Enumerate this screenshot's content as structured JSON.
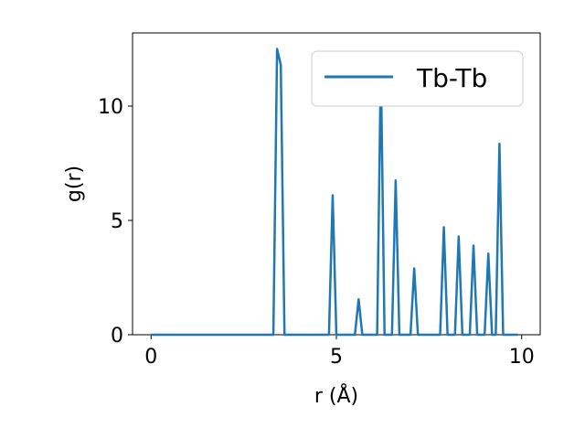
{
  "chart_data": {
    "type": "line",
    "title": "",
    "xlabel": "r (Å)",
    "ylabel": "g(r)",
    "xlim": [
      -0.5,
      10.5
    ],
    "ylim": [
      0,
      13.2
    ],
    "xticks": [
      0,
      5,
      10
    ],
    "xtick_labels": [
      "0",
      "5",
      "10"
    ],
    "yticks": [
      0,
      5,
      10
    ],
    "ytick_labels": [
      "0",
      "5",
      "10"
    ],
    "grid": false,
    "legend_position": "top-right",
    "series": [
      {
        "name": "Tb-Tb",
        "color": "#1f77b4",
        "x": [
          0,
          3.3,
          3.4,
          3.5,
          3.6,
          4.8,
          4.9,
          5.0,
          5.5,
          5.6,
          5.7,
          6.1,
          6.2,
          6.3,
          6.5,
          6.6,
          6.7,
          7.0,
          7.1,
          7.2,
          7.8,
          7.9,
          8.0,
          8.2,
          8.3,
          8.4,
          8.6,
          8.7,
          8.8,
          9.0,
          9.1,
          9.2,
          9.3,
          9.4,
          9.5,
          9.9
        ],
        "y": [
          0,
          0,
          12.5,
          11.8,
          0,
          0,
          6.1,
          0,
          0,
          1.55,
          0,
          0,
          11.8,
          0,
          0,
          6.75,
          0,
          0,
          2.9,
          0,
          0,
          4.7,
          0,
          0,
          4.3,
          0,
          0,
          3.9,
          0,
          0,
          3.55,
          0,
          0,
          8.35,
          0,
          0
        ]
      }
    ]
  }
}
